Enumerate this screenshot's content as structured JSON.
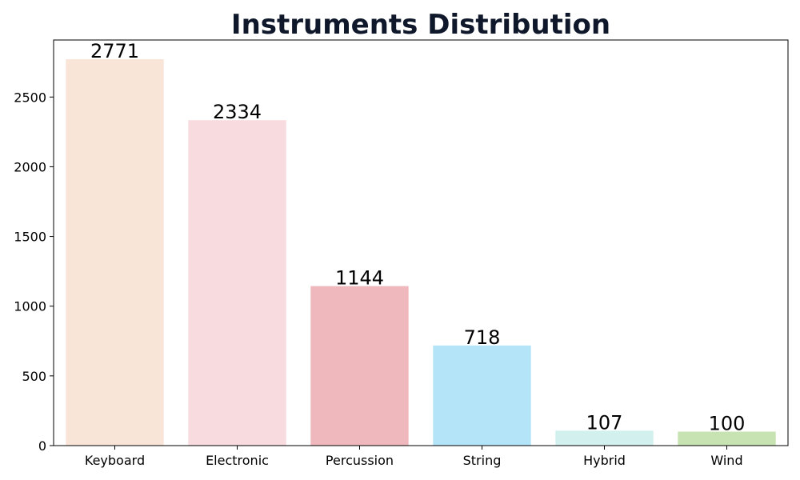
{
  "chart_data": {
    "type": "bar",
    "title": "Instruments Distribution",
    "xlabel": "",
    "ylabel": "",
    "categories": [
      "Keyboard",
      "Electronic",
      "Percussion",
      "String",
      "Hybrid",
      "Wind"
    ],
    "values": [
      2771,
      2334,
      1144,
      718,
      107,
      100
    ],
    "value_labels": [
      "2771",
      "2334",
      "1144",
      "718",
      "107",
      "100"
    ],
    "colors": [
      "#f9e4d8",
      "#f8dbdf",
      "#efb8bd",
      "#b3e4f8",
      "#d2f0ed",
      "#c8e3b2"
    ],
    "yticks": [
      0,
      500,
      1000,
      1500,
      2000,
      2500
    ],
    "ytick_labels": [
      "0",
      "500",
      "1000",
      "1500",
      "2000",
      "2500"
    ],
    "ylim": [
      0,
      2909
    ],
    "grid": false,
    "legend": "none"
  }
}
